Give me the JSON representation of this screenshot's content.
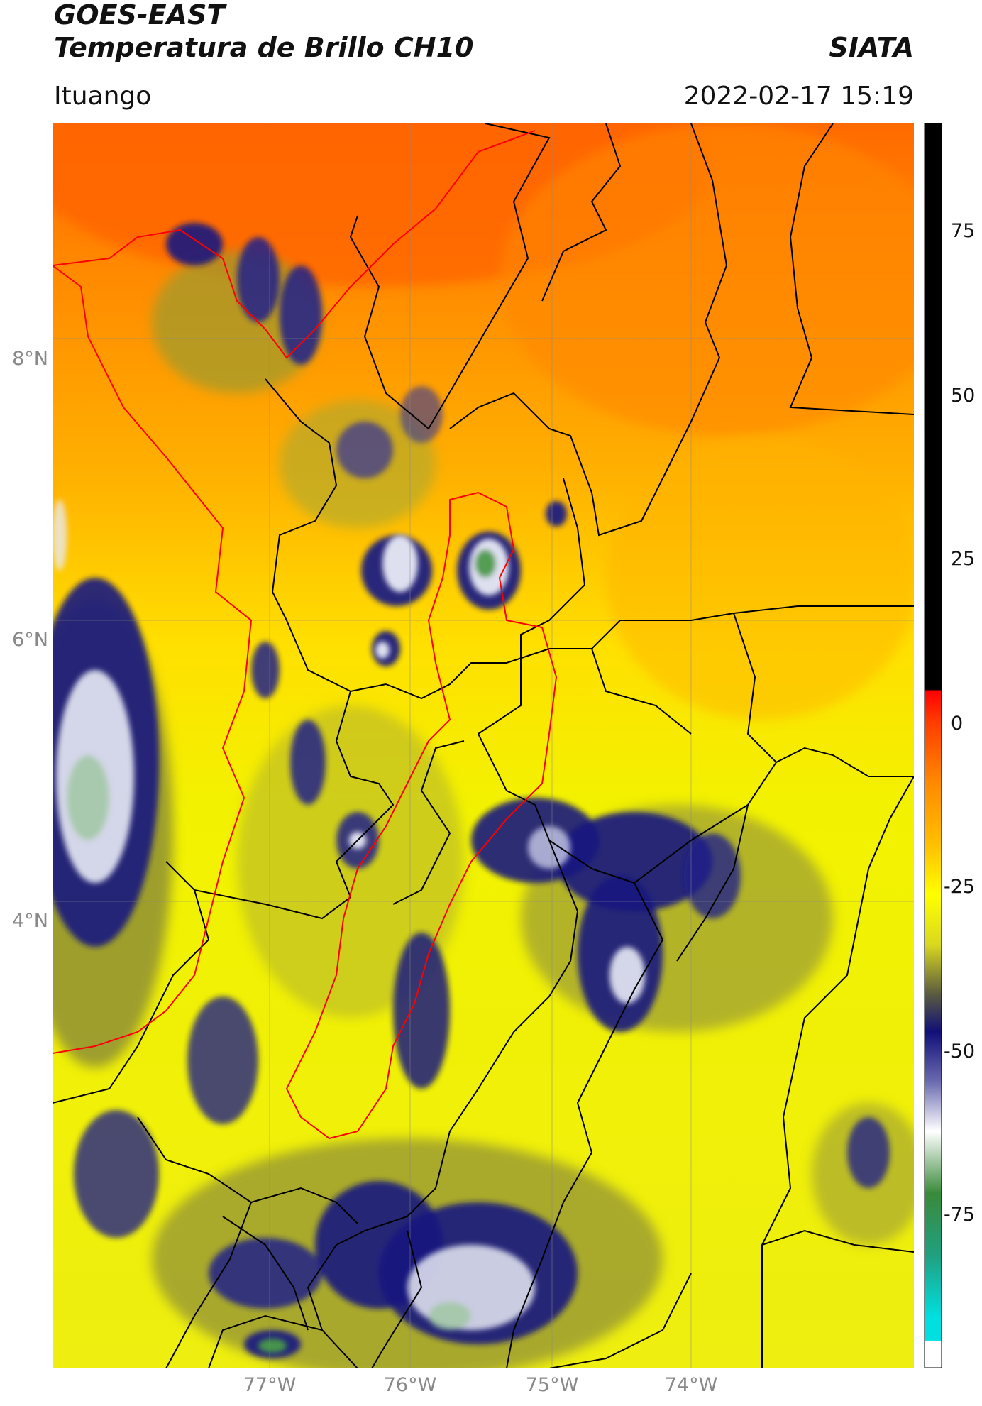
{
  "header": {
    "title_line1": "GOES-EAST",
    "title_line2": "Temperatura de Brillo CH10",
    "brand": "SIATA",
    "region": "Ituango",
    "datetime": "2022-02-17 15:19"
  },
  "axes": {
    "lat_labels": [
      "8°N",
      "6°N",
      "4°N"
    ],
    "lon_labels": [
      "77°W",
      "76°W",
      "75°W",
      "74°W"
    ]
  },
  "colorbar": {
    "tick_labels": [
      "75",
      "50",
      "25",
      "0",
      "-25",
      "-50",
      "-75"
    ],
    "range": [
      -95,
      95
    ]
  },
  "colors": {
    "warm_orange": "#ff7a00",
    "yellow": "#f2f200",
    "cold_navy": "#1a1a80",
    "very_cold_white": "#e8eaf5",
    "border_black": "#000000",
    "border_red": "#ff0000"
  }
}
